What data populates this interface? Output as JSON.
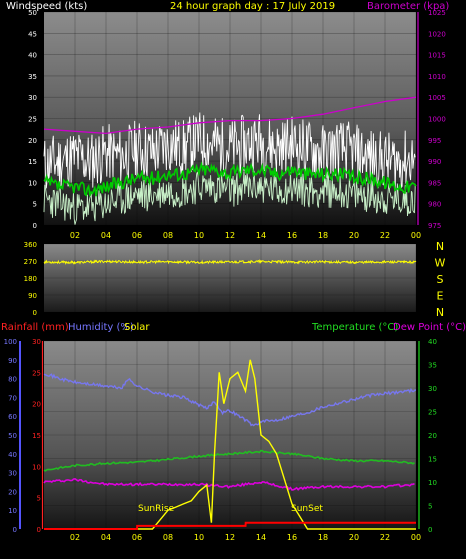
{
  "title": "24 hour graph day : 17 July 2019",
  "labels": {
    "windspeed": "Windspeed (kts)",
    "barometer": "Barometer (kpa)",
    "rainfall": "Rainfall (mm)",
    "humidity": "Humidity (%)",
    "solar": "Solar",
    "temperature": "Temperature (°C)",
    "dewpoint": "Dew Point (°C)",
    "sunrise": "SunRise",
    "sunset": "SunSet"
  },
  "colors": {
    "wind_gust": "#ffffff",
    "wind_avg": "#00cc00",
    "wind_low": "#c8f0c8",
    "barometer": "#cc00cc",
    "direction": "#ffff00",
    "temperature": "#22bb22",
    "dewpoint": "#dd00dd",
    "humidity": "#7777ee",
    "rainfall": "#ff0000",
    "solar": "#ffff00"
  },
  "chart_data": [
    {
      "type": "line",
      "name": "wind-barometer",
      "x_ticks": [
        "02",
        "04",
        "06",
        "08",
        "10",
        "12",
        "14",
        "16",
        "18",
        "20",
        "22",
        "00"
      ],
      "y_left_ticks": [
        "0",
        "5",
        "10",
        "15",
        "20",
        "25",
        "30",
        "35",
        "40",
        "45",
        "50"
      ],
      "y_left_range": [
        0,
        50
      ],
      "y_right_ticks": [
        "975",
        "980",
        "985",
        "990",
        "995",
        "1000",
        "1005",
        "1010",
        "1015",
        "1020",
        "1025"
      ],
      "y_right_range": [
        975,
        1025
      ],
      "x_range": [
        0,
        24
      ],
      "series": [
        {
          "name": "Windspeed gust",
          "x": [
            0,
            1,
            2,
            3,
            4,
            5,
            6,
            7,
            8,
            9,
            10,
            11,
            12,
            13,
            14,
            15,
            16,
            17,
            18,
            19,
            20,
            21,
            22,
            23,
            24
          ],
          "values": [
            14,
            15,
            16,
            15,
            17,
            16,
            18,
            17,
            19,
            18,
            20,
            19,
            18,
            19,
            20,
            18,
            19,
            18,
            17,
            18,
            17,
            16,
            15,
            15,
            16
          ]
        },
        {
          "name": "Windspeed avg",
          "x": [
            0,
            1,
            2,
            3,
            4,
            5,
            6,
            7,
            8,
            9,
            10,
            11,
            12,
            13,
            14,
            15,
            16,
            17,
            18,
            19,
            20,
            21,
            22,
            23,
            24
          ],
          "values": [
            10,
            9,
            9,
            8,
            9,
            10,
            11,
            11,
            12,
            12,
            13,
            13,
            12,
            13,
            13,
            12,
            13,
            12,
            12,
            12,
            11,
            11,
            10,
            9,
            9
          ]
        },
        {
          "name": "Windspeed low",
          "x": [
            0,
            1,
            2,
            3,
            4,
            5,
            6,
            7,
            8,
            9,
            10,
            11,
            12,
            13,
            14,
            15,
            16,
            17,
            18,
            19,
            20,
            21,
            22,
            23,
            24
          ],
          "values": [
            6,
            5,
            4,
            4,
            5,
            6,
            7,
            7,
            8,
            8,
            9,
            9,
            8,
            9,
            9,
            8,
            9,
            8,
            8,
            8,
            7,
            7,
            6,
            6,
            6
          ]
        },
        {
          "name": "Barometer",
          "x": [
            0,
            2,
            4,
            6,
            8,
            10,
            12,
            14,
            16,
            18,
            20,
            22,
            24
          ],
          "values": [
            997.5,
            997,
            996.5,
            997.5,
            998,
            999,
            999.5,
            999.5,
            1000,
            1001,
            1002.5,
            1004,
            1005
          ]
        }
      ]
    },
    {
      "type": "line",
      "name": "wind-direction",
      "x_ticks": [
        "02",
        "04",
        "06",
        "08",
        "10",
        "12",
        "14",
        "16",
        "18",
        "20",
        "22",
        "00"
      ],
      "y_ticks": [
        "0",
        "90",
        "180",
        "270",
        "360"
      ],
      "y_range": [
        0,
        360
      ],
      "x_range": [
        0,
        24
      ],
      "compass": [
        "N",
        "W",
        "S",
        "E",
        "N"
      ],
      "series": [
        {
          "name": "Wind direction",
          "x": [
            0,
            2,
            4,
            6,
            8,
            10,
            12,
            14,
            16,
            18,
            20,
            22,
            24
          ],
          "values": [
            265,
            262,
            268,
            264,
            266,
            263,
            265,
            267,
            264,
            266,
            263,
            265,
            264
          ]
        }
      ]
    },
    {
      "type": "line",
      "name": "rain-humidity-temp",
      "x_ticks": [
        "02",
        "04",
        "06",
        "08",
        "10",
        "12",
        "14",
        "16",
        "18",
        "20",
        "22",
        "00"
      ],
      "y_rain_ticks": [
        "0",
        "5",
        "10",
        "15",
        "20",
        "25",
        "30"
      ],
      "y_rain_range": [
        0,
        30
      ],
      "y_humidity_ticks": [
        "0",
        "10",
        "20",
        "30",
        "40",
        "50",
        "60",
        "70",
        "80",
        "90",
        "100"
      ],
      "y_humidity_range": [
        0,
        100
      ],
      "y_temp_ticks": [
        "0",
        "5",
        "10",
        "15",
        "20",
        "25",
        "30",
        "35",
        "40"
      ],
      "y_temp_range": [
        0,
        40
      ],
      "x_range": [
        0,
        24
      ],
      "series": [
        {
          "name": "Humidity",
          "x": [
            0,
            1,
            2,
            3,
            4,
            5,
            5.5,
            6,
            7,
            8,
            9,
            10,
            10.5,
            11,
            11.5,
            12,
            13,
            13.5,
            14,
            15,
            16,
            17,
            18,
            19,
            20,
            21,
            22,
            23,
            24
          ],
          "values": [
            83,
            80,
            78,
            77,
            76,
            75,
            80,
            76,
            73,
            71,
            70,
            66,
            64,
            68,
            62,
            63,
            58,
            55,
            57,
            58,
            60,
            62,
            65,
            67,
            69,
            71,
            72,
            73,
            74
          ]
        },
        {
          "name": "Temperature",
          "x": [
            0,
            2,
            4,
            6,
            8,
            10,
            12,
            14,
            16,
            18,
            20,
            22,
            24
          ],
          "values": [
            12.5,
            13.5,
            14,
            14.2,
            14.8,
            15.5,
            16,
            16.5,
            16,
            15,
            14.5,
            14.5,
            14
          ]
        },
        {
          "name": "Dew Point",
          "x": [
            0,
            2,
            4,
            6,
            8,
            10,
            12,
            14,
            16,
            18,
            20,
            22,
            24
          ],
          "values": [
            10,
            10.5,
            9.5,
            9.5,
            9.5,
            9.5,
            9,
            10,
            8.5,
            9,
            9,
            9,
            9.5
          ]
        },
        {
          "name": "Solar",
          "x": [
            0,
            6,
            7,
            7.5,
            8,
            8.5,
            9,
            9.5,
            10,
            10.5,
            10.8,
            11,
            11.3,
            11.6,
            12,
            12.5,
            13,
            13.3,
            13.6,
            14,
            14.5,
            15,
            15.5,
            16,
            16.5,
            17,
            24
          ],
          "values": [
            0,
            0,
            0,
            1.5,
            3,
            3.5,
            4,
            4.5,
            6,
            7,
            1,
            12,
            25,
            20,
            24,
            25,
            22,
            27,
            24,
            15,
            14,
            12,
            8,
            4,
            2,
            0,
            0
          ]
        },
        {
          "name": "Rainfall",
          "x": [
            0,
            6,
            6.01,
            13,
            13.01,
            24
          ],
          "values": [
            0,
            0,
            0.5,
            0.5,
            1,
            1
          ]
        }
      ]
    }
  ]
}
